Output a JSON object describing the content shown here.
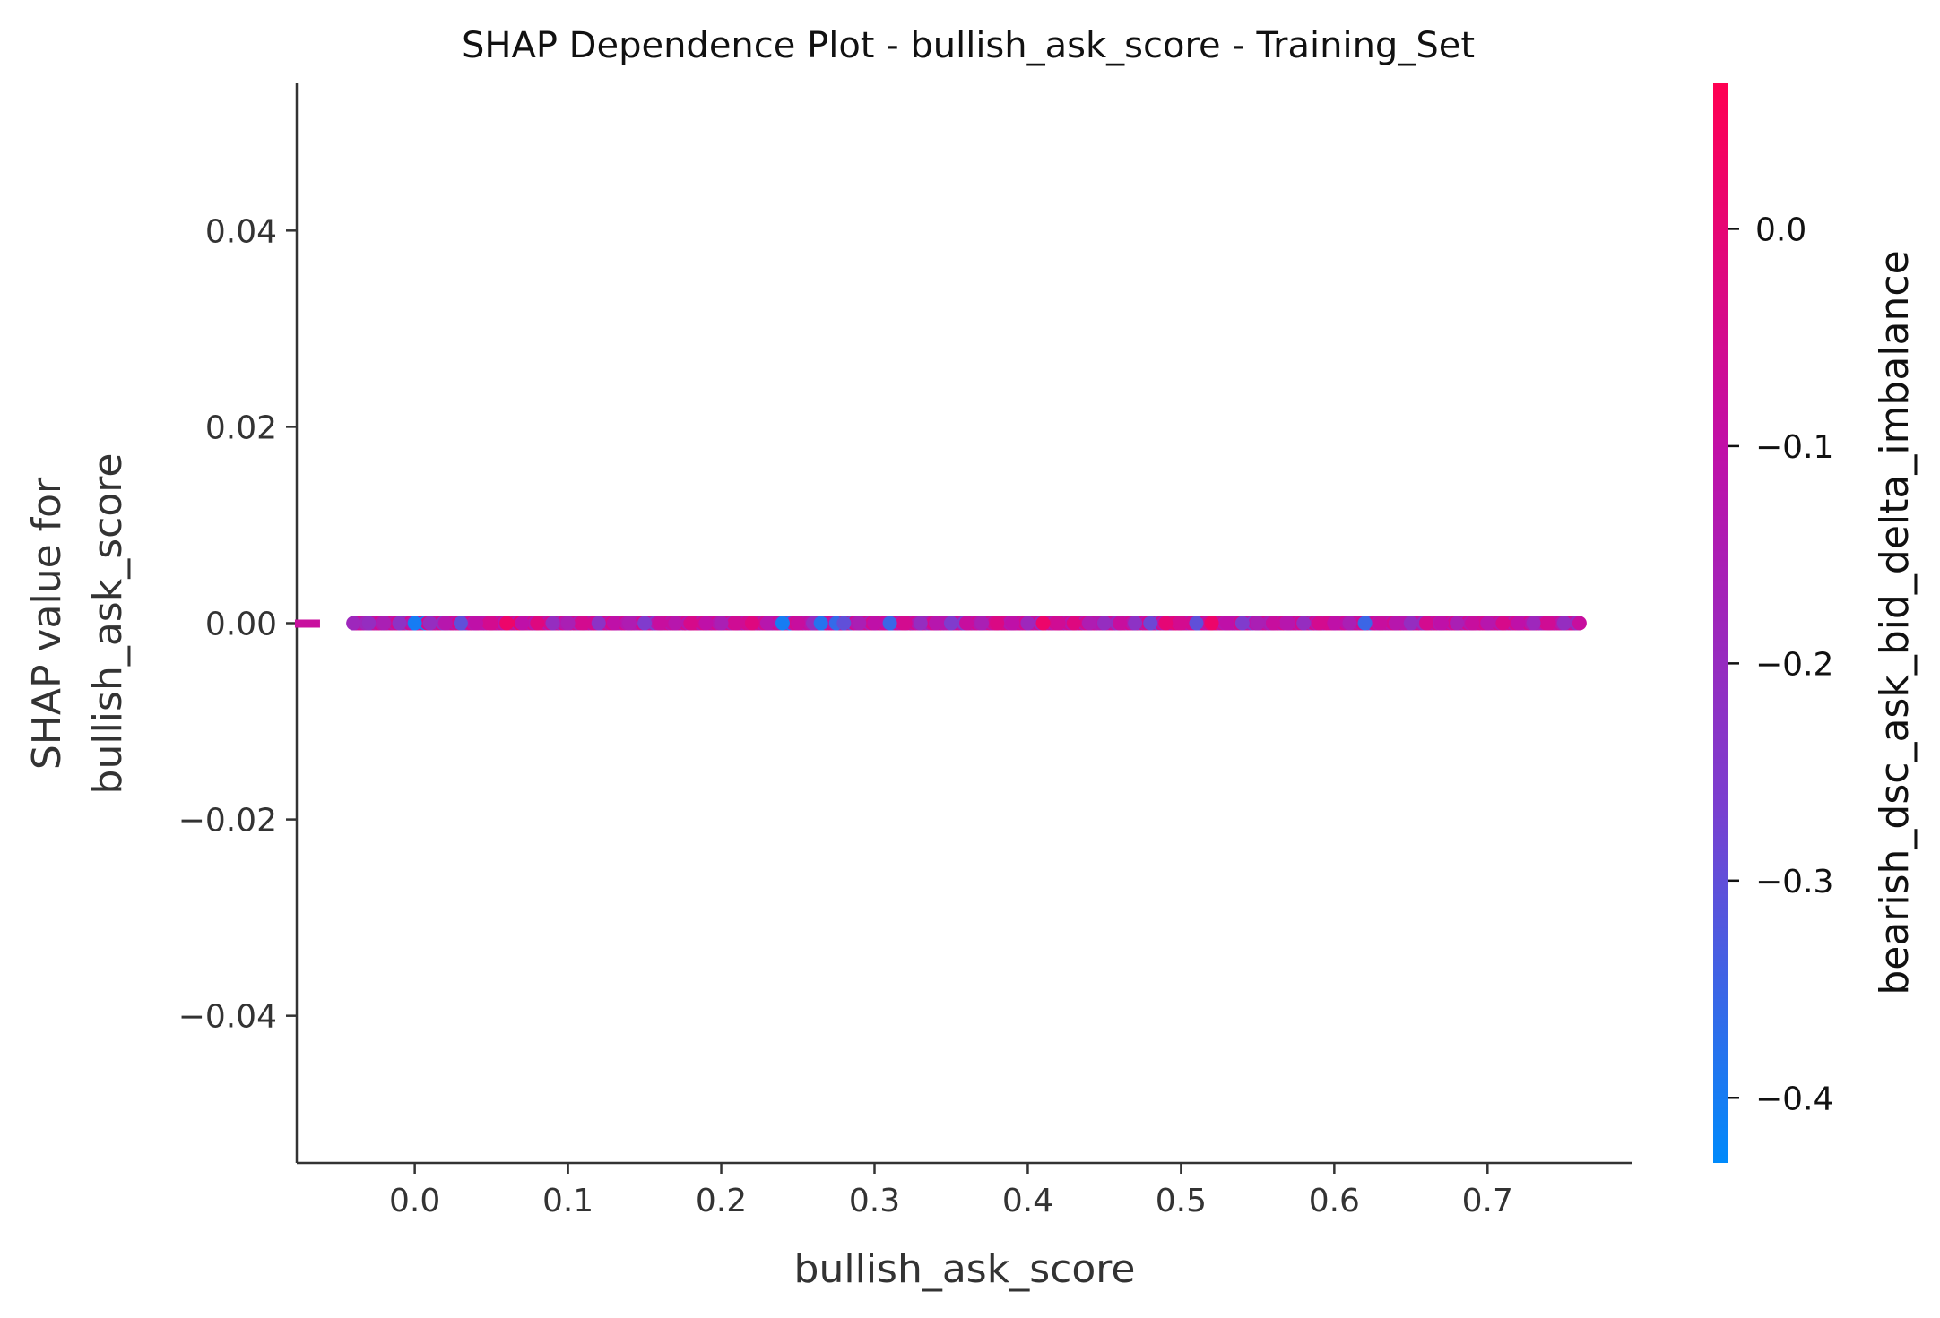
{
  "chart_data": {
    "type": "scatter",
    "title": "SHAP Dependence Plot - bullish_ask_score - Training_Set",
    "xlabel": "bullish_ask_score",
    "ylabel_line1": "SHAP value for",
    "ylabel_line2": "bullish_ask_score",
    "xlim": [
      -0.077,
      0.794
    ],
    "ylim": [
      -0.055,
      0.055
    ],
    "x_ticks": [
      {
        "value": 0.0,
        "label": "0.0"
      },
      {
        "value": 0.1,
        "label": "0.1"
      },
      {
        "value": 0.2,
        "label": "0.2"
      },
      {
        "value": 0.3,
        "label": "0.3"
      },
      {
        "value": 0.4,
        "label": "0.4"
      },
      {
        "value": 0.5,
        "label": "0.5"
      },
      {
        "value": 0.6,
        "label": "0.6"
      },
      {
        "value": 0.7,
        "label": "0.7"
      }
    ],
    "y_ticks": [
      {
        "value": 0.04,
        "label": "0.04"
      },
      {
        "value": 0.02,
        "label": "0.02"
      },
      {
        "value": 0.0,
        "label": "0.00"
      },
      {
        "value": -0.02,
        "label": "−0.02"
      },
      {
        "value": -0.04,
        "label": "−0.04"
      }
    ],
    "grid": false,
    "colorbar": {
      "label": "bearish_dsc_ask_bid_delta_imbalance",
      "range": [
        -0.43,
        0.067
      ],
      "colors": [
        "#008afb",
        "#7a3fd0",
        "#c010a8",
        "#ff0052"
      ],
      "ticks": [
        {
          "value": 0.0,
          "label": "0.0"
        },
        {
          "value": -0.1,
          "label": "−0.1"
        },
        {
          "value": -0.2,
          "label": "−0.2"
        },
        {
          "value": -0.3,
          "label": "−0.3"
        },
        {
          "value": -0.4,
          "label": "−0.4"
        }
      ]
    },
    "nan_marker": {
      "x": -0.07,
      "y": 0.0,
      "color": "#c8109e"
    },
    "points": [
      {
        "x": -0.04,
        "y": 0,
        "c": -0.18
      },
      {
        "x": -0.03,
        "y": 0,
        "c": -0.2
      },
      {
        "x": -0.02,
        "y": 0,
        "c": -0.15
      },
      {
        "x": -0.01,
        "y": 0,
        "c": -0.22
      },
      {
        "x": 0.0,
        "y": 0,
        "c": -0.4
      },
      {
        "x": 0.01,
        "y": 0,
        "c": -0.2
      },
      {
        "x": 0.02,
        "y": 0,
        "c": -0.12
      },
      {
        "x": 0.03,
        "y": 0,
        "c": -0.3
      },
      {
        "x": 0.04,
        "y": 0,
        "c": -0.1
      },
      {
        "x": 0.05,
        "y": 0,
        "c": -0.05
      },
      {
        "x": 0.06,
        "y": 0,
        "c": 0.02
      },
      {
        "x": 0.07,
        "y": 0,
        "c": -0.1
      },
      {
        "x": 0.08,
        "y": 0,
        "c": -0.02
      },
      {
        "x": 0.09,
        "y": 0,
        "c": -0.2
      },
      {
        "x": 0.1,
        "y": 0,
        "c": -0.15
      },
      {
        "x": 0.11,
        "y": 0,
        "c": -0.05
      },
      {
        "x": 0.12,
        "y": 0,
        "c": -0.22
      },
      {
        "x": 0.13,
        "y": 0,
        "c": -0.1
      },
      {
        "x": 0.14,
        "y": 0,
        "c": -0.14
      },
      {
        "x": 0.15,
        "y": 0,
        "c": -0.25
      },
      {
        "x": 0.16,
        "y": 0,
        "c": -0.08
      },
      {
        "x": 0.17,
        "y": 0,
        "c": -0.12
      },
      {
        "x": 0.18,
        "y": 0,
        "c": -0.04
      },
      {
        "x": 0.19,
        "y": 0,
        "c": -0.1
      },
      {
        "x": 0.2,
        "y": 0,
        "c": -0.15
      },
      {
        "x": 0.21,
        "y": 0,
        "c": -0.06
      },
      {
        "x": 0.22,
        "y": 0,
        "c": -0.02
      },
      {
        "x": 0.23,
        "y": 0,
        "c": -0.12
      },
      {
        "x": 0.24,
        "y": 0,
        "c": -0.4
      },
      {
        "x": 0.25,
        "y": 0,
        "c": -0.08
      },
      {
        "x": 0.26,
        "y": 0,
        "c": -0.2
      },
      {
        "x": 0.265,
        "y": 0,
        "c": -0.38
      },
      {
        "x": 0.275,
        "y": 0,
        "c": -0.36
      },
      {
        "x": 0.28,
        "y": 0,
        "c": -0.3
      },
      {
        "x": 0.29,
        "y": 0,
        "c": -0.15
      },
      {
        "x": 0.3,
        "y": 0,
        "c": -0.1
      },
      {
        "x": 0.31,
        "y": 0,
        "c": -0.35
      },
      {
        "x": 0.32,
        "y": 0,
        "c": -0.05
      },
      {
        "x": 0.33,
        "y": 0,
        "c": -0.2
      },
      {
        "x": 0.34,
        "y": 0,
        "c": -0.12
      },
      {
        "x": 0.35,
        "y": 0,
        "c": -0.25
      },
      {
        "x": 0.36,
        "y": 0,
        "c": -0.08
      },
      {
        "x": 0.37,
        "y": 0,
        "c": -0.15
      },
      {
        "x": 0.38,
        "y": 0,
        "c": -0.03
      },
      {
        "x": 0.39,
        "y": 0,
        "c": -0.1
      },
      {
        "x": 0.4,
        "y": 0,
        "c": -0.18
      },
      {
        "x": 0.41,
        "y": 0,
        "c": 0.02
      },
      {
        "x": 0.42,
        "y": 0,
        "c": -0.06
      },
      {
        "x": 0.43,
        "y": 0,
        "c": -0.02
      },
      {
        "x": 0.44,
        "y": 0,
        "c": -0.14
      },
      {
        "x": 0.45,
        "y": 0,
        "c": -0.2
      },
      {
        "x": 0.46,
        "y": 0,
        "c": -0.08
      },
      {
        "x": 0.47,
        "y": 0,
        "c": -0.22
      },
      {
        "x": 0.48,
        "y": 0,
        "c": -0.28
      },
      {
        "x": 0.49,
        "y": 0,
        "c": 0.0
      },
      {
        "x": 0.5,
        "y": 0,
        "c": -0.05
      },
      {
        "x": 0.51,
        "y": 0,
        "c": -0.3
      },
      {
        "x": 0.52,
        "y": 0,
        "c": 0.02
      },
      {
        "x": 0.53,
        "y": 0,
        "c": -0.1
      },
      {
        "x": 0.54,
        "y": 0,
        "c": -0.25
      },
      {
        "x": 0.55,
        "y": 0,
        "c": -0.15
      },
      {
        "x": 0.56,
        "y": 0,
        "c": -0.08
      },
      {
        "x": 0.57,
        "y": 0,
        "c": -0.12
      },
      {
        "x": 0.58,
        "y": 0,
        "c": -0.2
      },
      {
        "x": 0.59,
        "y": 0,
        "c": -0.05
      },
      {
        "x": 0.6,
        "y": 0,
        "c": -0.1
      },
      {
        "x": 0.61,
        "y": 0,
        "c": -0.15
      },
      {
        "x": 0.62,
        "y": 0,
        "c": -0.35
      },
      {
        "x": 0.63,
        "y": 0,
        "c": -0.08
      },
      {
        "x": 0.64,
        "y": 0,
        "c": -0.12
      },
      {
        "x": 0.65,
        "y": 0,
        "c": -0.2
      },
      {
        "x": 0.66,
        "y": 0,
        "c": -0.05
      },
      {
        "x": 0.67,
        "y": 0,
        "c": -0.1
      },
      {
        "x": 0.68,
        "y": 0,
        "c": -0.15
      },
      {
        "x": 0.69,
        "y": 0,
        "c": -0.08
      },
      {
        "x": 0.7,
        "y": 0,
        "c": -0.12
      },
      {
        "x": 0.71,
        "y": 0,
        "c": -0.04
      },
      {
        "x": 0.72,
        "y": 0,
        "c": -0.1
      },
      {
        "x": 0.73,
        "y": 0,
        "c": -0.18
      },
      {
        "x": 0.74,
        "y": 0,
        "c": -0.06
      },
      {
        "x": 0.75,
        "y": 0,
        "c": -0.2
      },
      {
        "x": 0.76,
        "y": 0,
        "c": -0.08
      }
    ]
  }
}
